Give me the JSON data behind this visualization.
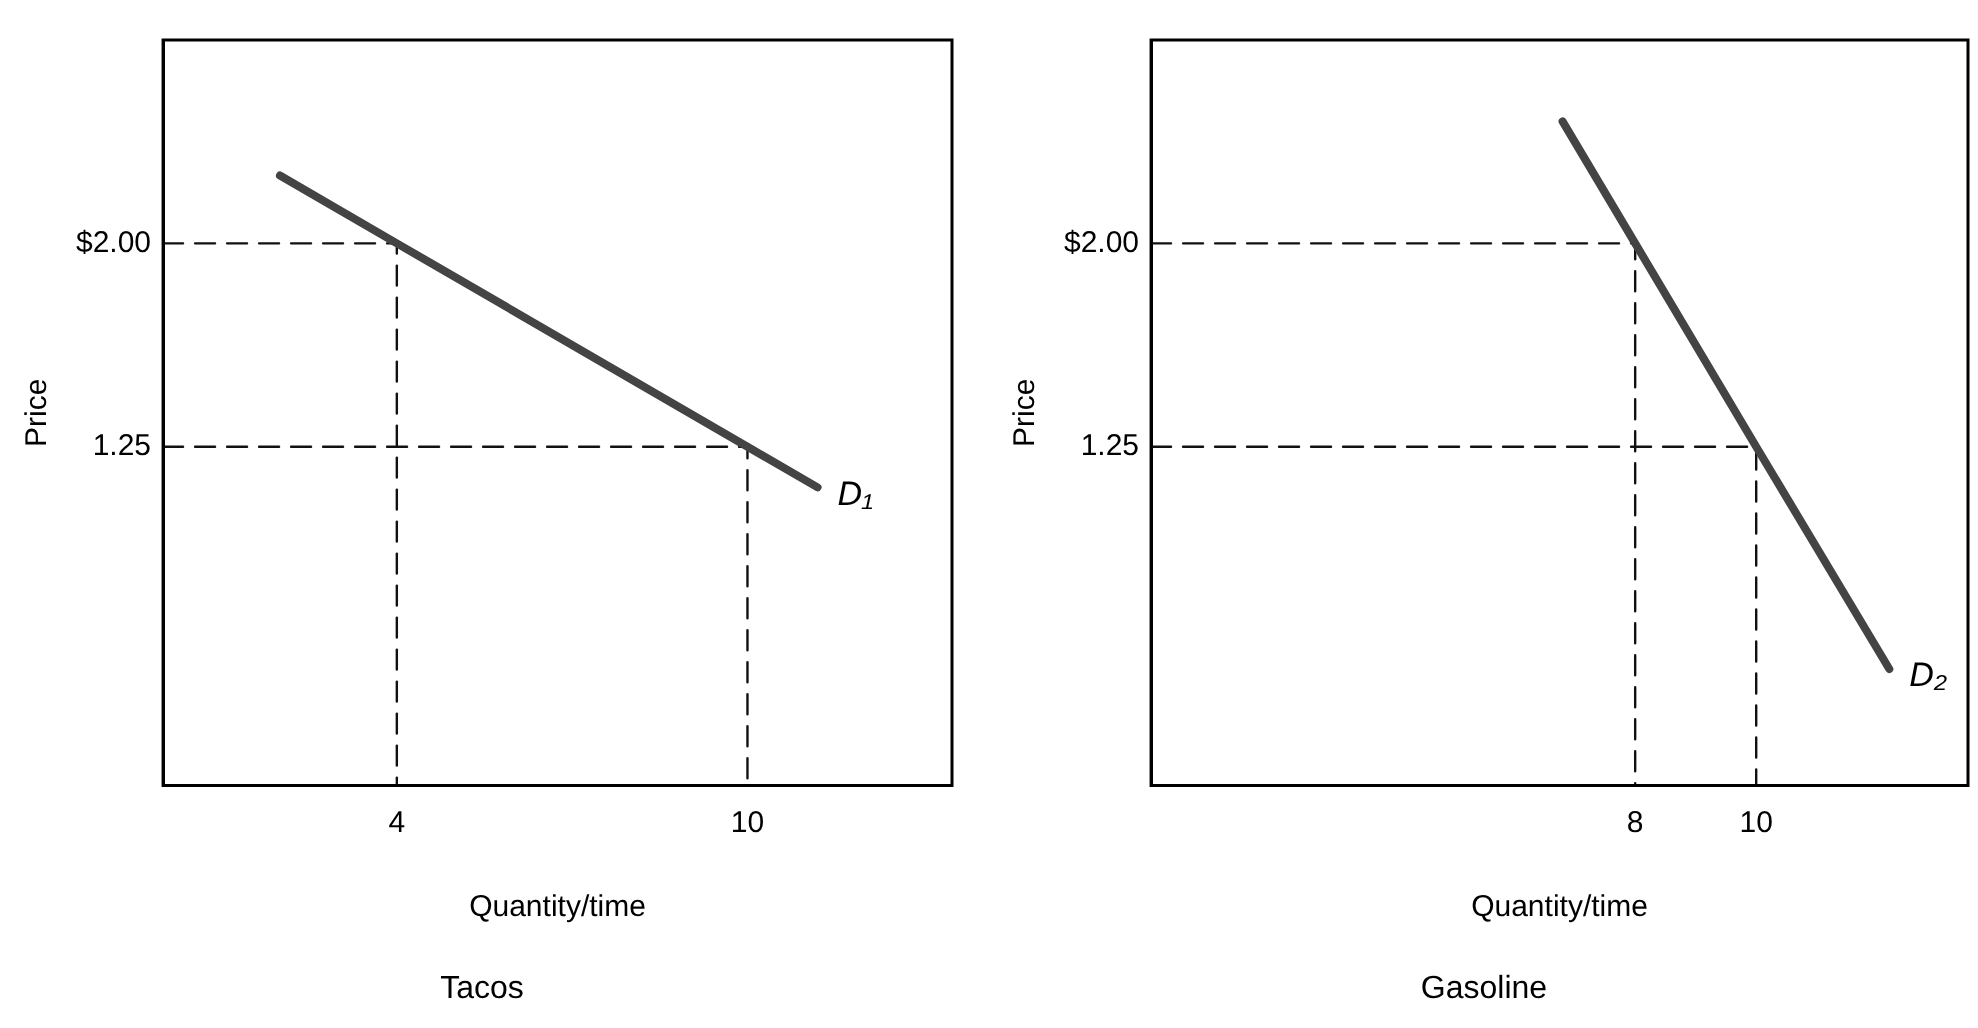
{
  "chart_data": [
    {
      "type": "line",
      "title": "Tacos",
      "xlabel": "Quantity/time",
      "ylabel": "Price",
      "xlim": [
        0,
        13.5
      ],
      "ylim": [
        0,
        2.75
      ],
      "xticks": [
        4,
        10
      ],
      "yticks": [
        {
          "value": 2,
          "label": "$2.00"
        },
        1.25
      ],
      "grid": false,
      "legend": false,
      "marker": "none",
      "series": [
        {
          "x": [
            2,
            4,
            10,
            11.2
          ],
          "values": [
            2.25,
            2,
            1.25,
            1.1
          ],
          "color": "#444444",
          "line_style": "solid"
        },
        {
          "x": [
            0,
            4,
            4
          ],
          "values": [
            2,
            2,
            0
          ],
          "color": "#111111",
          "line_style": "dashed"
        },
        {
          "x": [
            0,
            10,
            10
          ],
          "values": [
            1.25,
            1.25,
            0
          ],
          "color": "#111111",
          "line_style": "dashed"
        }
      ],
      "annotations": [
        {
          "text": "D₁",
          "x": 11.2,
          "y": 1.1
        }
      ]
    },
    {
      "type": "line",
      "title": "Gasoline",
      "xlabel": "Quantity/time",
      "ylabel": "Price",
      "xlim": [
        0,
        13.5
      ],
      "ylim": [
        0,
        2.75
      ],
      "xticks": [
        8,
        10
      ],
      "yticks": [
        {
          "value": 2,
          "label": "$2.00"
        },
        1.25
      ],
      "grid": false,
      "legend": false,
      "marker": "none",
      "series": [
        {
          "x": [
            6.8,
            8,
            10,
            12.2
          ],
          "values": [
            2.45,
            2,
            1.25,
            0.43
          ],
          "color": "#444444",
          "line_style": "solid"
        },
        {
          "x": [
            0,
            8,
            8
          ],
          "values": [
            2,
            2,
            0
          ],
          "color": "#111111",
          "line_style": "dashed"
        },
        {
          "x": [
            0,
            10,
            10
          ],
          "values": [
            1.25,
            1.25,
            0
          ],
          "color": "#111111",
          "line_style": "dashed"
        }
      ],
      "annotations": [
        {
          "text": "D₂",
          "x": 12.2,
          "y": 0.43
        }
      ]
    }
  ]
}
